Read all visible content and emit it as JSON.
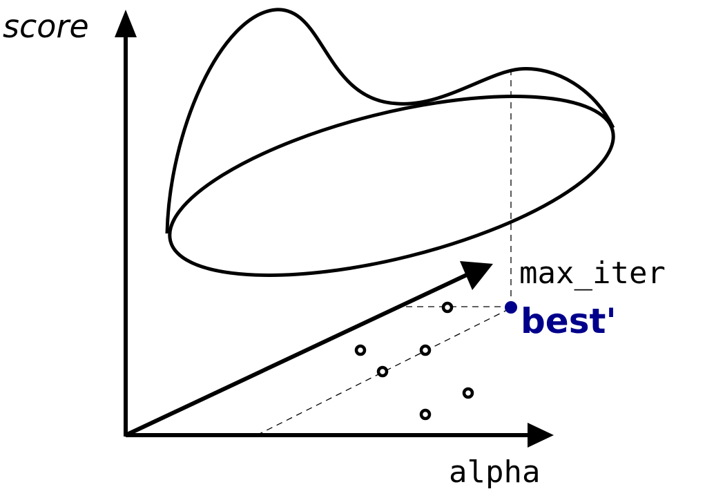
{
  "labels": {
    "score": "score",
    "max_iter": "max_iter",
    "alpha": "alpha",
    "best": "best'"
  },
  "colors": {
    "ink": "#000000",
    "best": "#00008b",
    "background": "#ffffff"
  },
  "samples": {
    "count": 6,
    "marker": "open-circle"
  }
}
